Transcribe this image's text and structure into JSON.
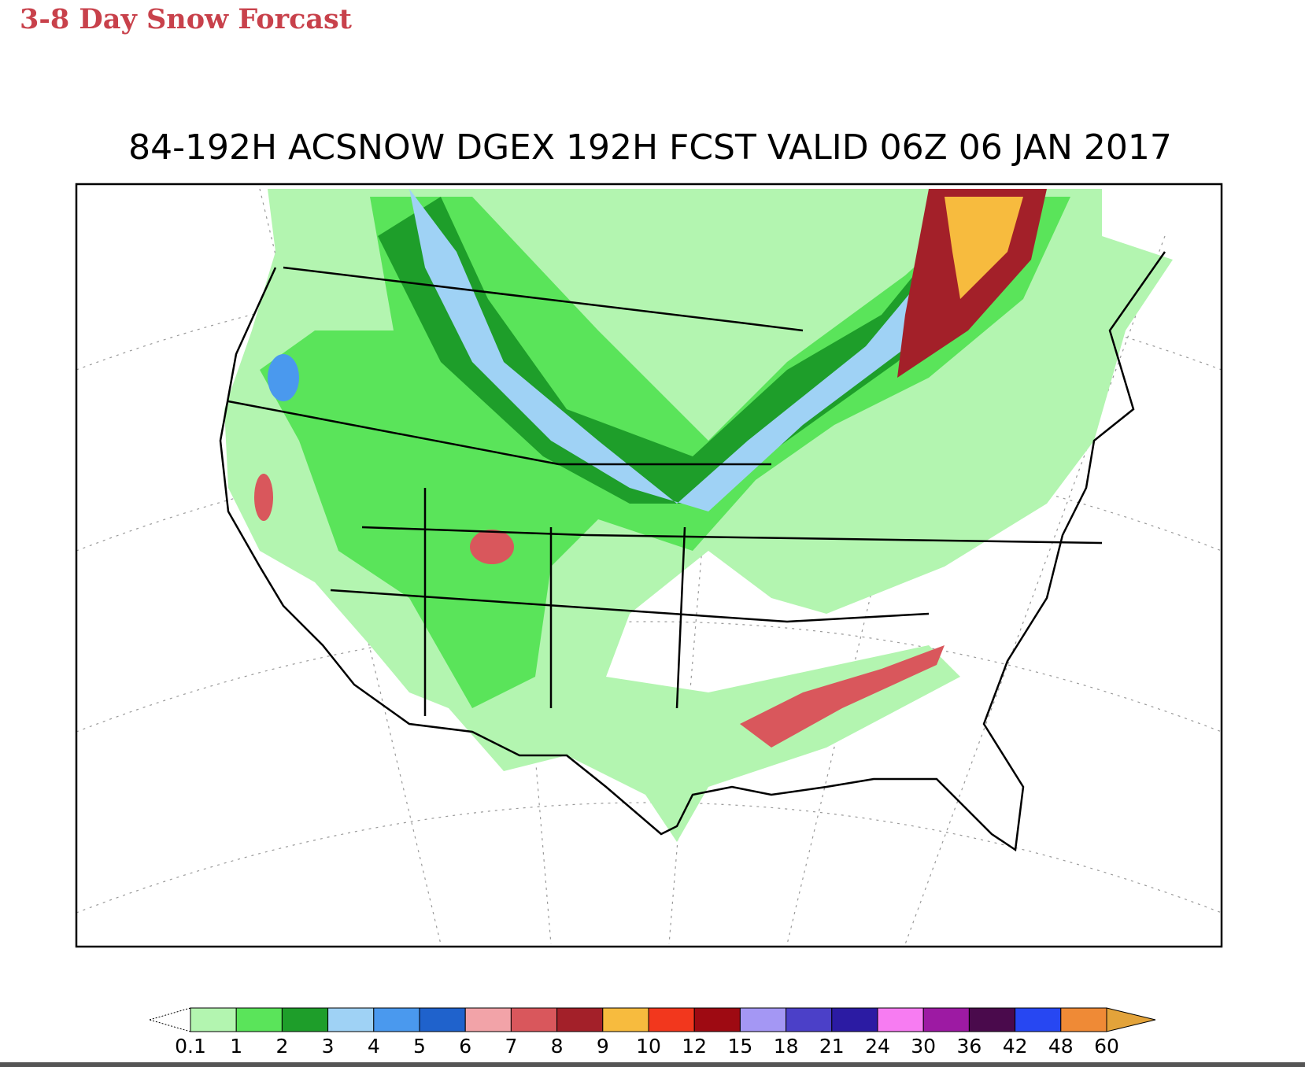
{
  "header": {
    "title": "3-8 Day Snow Forcast"
  },
  "map": {
    "title": "84-192H ACSNOW DGEX 192H FCST VALID 06Z 06 JAN 2017"
  },
  "legend": {
    "low_color": "#ffffff",
    "high_color": "#e3a33a",
    "colors": [
      "#b3f5b0",
      "#5ae45a",
      "#1e9e2a",
      "#9fd2f5",
      "#4a99ee",
      "#1f62cc",
      "#f2a3a8",
      "#d9575c",
      "#a32029",
      "#f7bb3e",
      "#f2371d",
      "#9e0a12",
      "#a497f4",
      "#4b40c8",
      "#2b1ba3",
      "#f77cf2",
      "#9d1aa3",
      "#4a0a4c",
      "#2747f2",
      "#ef8a36"
    ],
    "labels": [
      0.1,
      1,
      2,
      3,
      4,
      5,
      6,
      7,
      8,
      9,
      10,
      12,
      15,
      18,
      21,
      24,
      30,
      36,
      42,
      48,
      60
    ]
  }
}
